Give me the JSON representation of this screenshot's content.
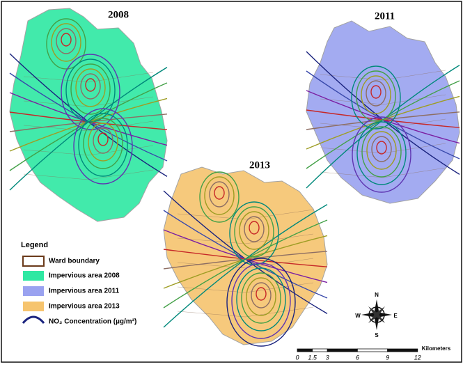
{
  "maps": [
    {
      "year": "2008"
    },
    {
      "year": "2011"
    },
    {
      "year": "2013"
    }
  ],
  "legend": {
    "title": "Legend",
    "items": [
      "Ward boundary",
      "Impervious area 2008",
      "Impervious area 2011",
      "Impervious area 2013",
      "NO₂ Concentration (µg/m³)"
    ]
  },
  "compass": {
    "north": "N",
    "east": "E",
    "south": "S",
    "west": "W"
  },
  "scale_bar": {
    "labels": [
      0,
      1.5,
      3,
      6,
      9,
      12
    ],
    "unit": "Kilometers"
  }
}
